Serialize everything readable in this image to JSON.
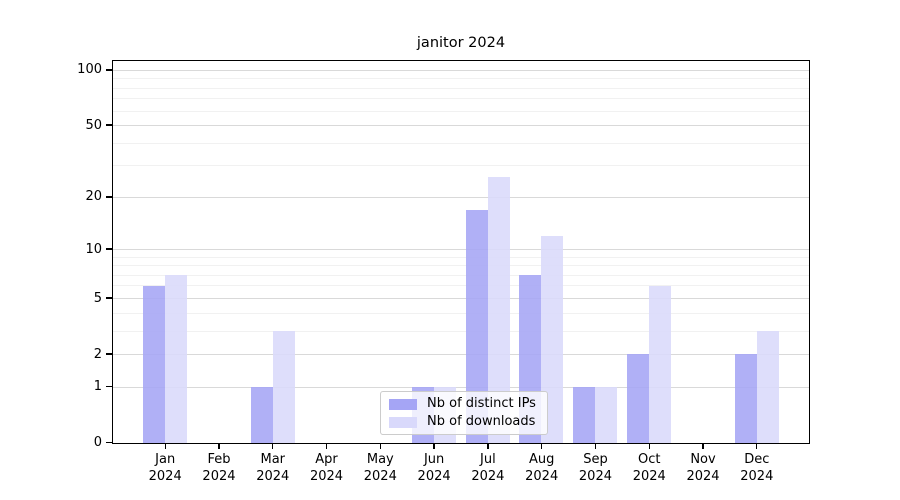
{
  "title": "janitor 2024",
  "chart_data": {
    "type": "bar",
    "title": "janitor 2024",
    "categories": [
      "Jan 2024",
      "Feb 2024",
      "Mar 2024",
      "Apr 2024",
      "May 2024",
      "Jun 2024",
      "Jul 2024",
      "Aug 2024",
      "Sep 2024",
      "Oct 2024",
      "Nov 2024",
      "Dec 2024"
    ],
    "series": [
      {
        "name": "Nb of distinct IPs",
        "color": "#a5a5f5",
        "values": [
          6,
          0,
          1,
          0,
          0,
          1,
          17,
          7,
          1,
          2,
          0,
          2
        ]
      },
      {
        "name": "Nb of downloads",
        "color": "#d9d9fb",
        "values": [
          7,
          0,
          3,
          0,
          0,
          1,
          26,
          12,
          1,
          6,
          0,
          3
        ]
      }
    ],
    "y_scale": "log10(1+x)",
    "y_major_ticks": [
      0,
      1,
      2,
      5,
      10,
      20,
      50,
      100
    ],
    "y_minor_ticks": [
      3,
      4,
      6,
      7,
      8,
      9,
      30,
      40,
      60,
      70,
      80,
      90
    ],
    "ylim": [
      0,
      112
    ],
    "xlabel": "",
    "ylabel": "",
    "grid": "horizontal",
    "legend_position": "lower center inside plot"
  },
  "colors": {
    "bar_distinct_ips": "#a5a5f5",
    "bar_downloads": "#d9d9fb",
    "grid_major": "#d9d9d9",
    "grid_minor": "#f1f1f1",
    "axis": "#000000",
    "legend_border": "#cccccc",
    "background": "#ffffff"
  }
}
